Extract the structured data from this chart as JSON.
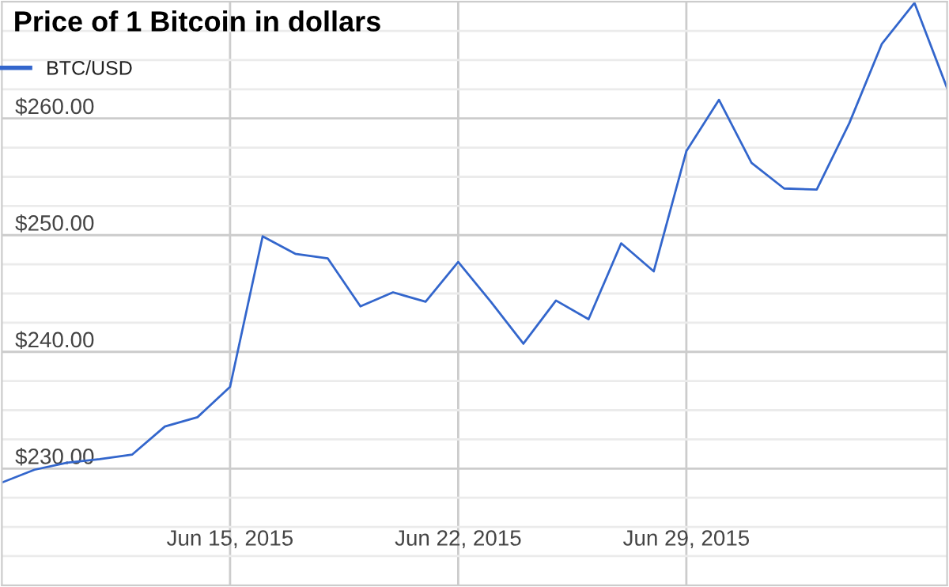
{
  "chart_data": {
    "type": "line",
    "title": "Price of 1 Bitcoin in dollars",
    "x": [
      "2015-06-08",
      "2015-06-09",
      "2015-06-10",
      "2015-06-11",
      "2015-06-12",
      "2015-06-13",
      "2015-06-14",
      "2015-06-15",
      "2015-06-16",
      "2015-06-17",
      "2015-06-18",
      "2015-06-19",
      "2015-06-20",
      "2015-06-21",
      "2015-06-22",
      "2015-06-23",
      "2015-06-24",
      "2015-06-25",
      "2015-06-26",
      "2015-06-27",
      "2015-06-28",
      "2015-06-29",
      "2015-06-30",
      "2015-07-01",
      "2015-07-02",
      "2015-07-03",
      "2015-07-04",
      "2015-07-05",
      "2015-07-06",
      "2015-07-07"
    ],
    "series": [
      {
        "name": "BTC/USD",
        "color": "#3366cc",
        "values": [
          228.8,
          229.9,
          230.5,
          230.8,
          231.2,
          233.6,
          234.4,
          237.0,
          249.9,
          248.4,
          248.0,
          243.9,
          245.1,
          244.3,
          247.7,
          244.3,
          240.7,
          244.4,
          242.8,
          249.3,
          246.9,
          257.2,
          261.6,
          256.2,
          254.0,
          253.9,
          259.6,
          266.4,
          269.9,
          262.6
        ]
      }
    ],
    "xlim": [
      "2015-06-08",
      "2015-07-07"
    ],
    "xticks": [
      {
        "value": "2015-06-15",
        "label": "Jun 15, 2015"
      },
      {
        "value": "2015-06-22",
        "label": "Jun 22, 2015"
      },
      {
        "value": "2015-06-29",
        "label": "Jun 29, 2015"
      }
    ],
    "ylim": [
      220,
      270
    ],
    "yticks": [
      {
        "value": 222.5,
        "label": null
      },
      {
        "value": 225,
        "label": null
      },
      {
        "value": 227.5,
        "label": null
      },
      {
        "value": 230,
        "label": "$230.00"
      },
      {
        "value": 232.5,
        "label": null
      },
      {
        "value": 235,
        "label": null
      },
      {
        "value": 237.5,
        "label": null
      },
      {
        "value": 240,
        "label": "$240.00"
      },
      {
        "value": 242.5,
        "label": null
      },
      {
        "value": 245,
        "label": null
      },
      {
        "value": 247.5,
        "label": null
      },
      {
        "value": 250,
        "label": "$250.00"
      },
      {
        "value": 252.5,
        "label": null
      },
      {
        "value": 255,
        "label": null
      },
      {
        "value": 257.5,
        "label": null
      },
      {
        "value": 260,
        "label": "$260.00"
      },
      {
        "value": 262.5,
        "label": null
      },
      {
        "value": 265,
        "label": null
      },
      {
        "value": 267.5,
        "label": null
      }
    ],
    "grid": true,
    "legend": "top left",
    "marker": "none",
    "line_style": "solid"
  }
}
